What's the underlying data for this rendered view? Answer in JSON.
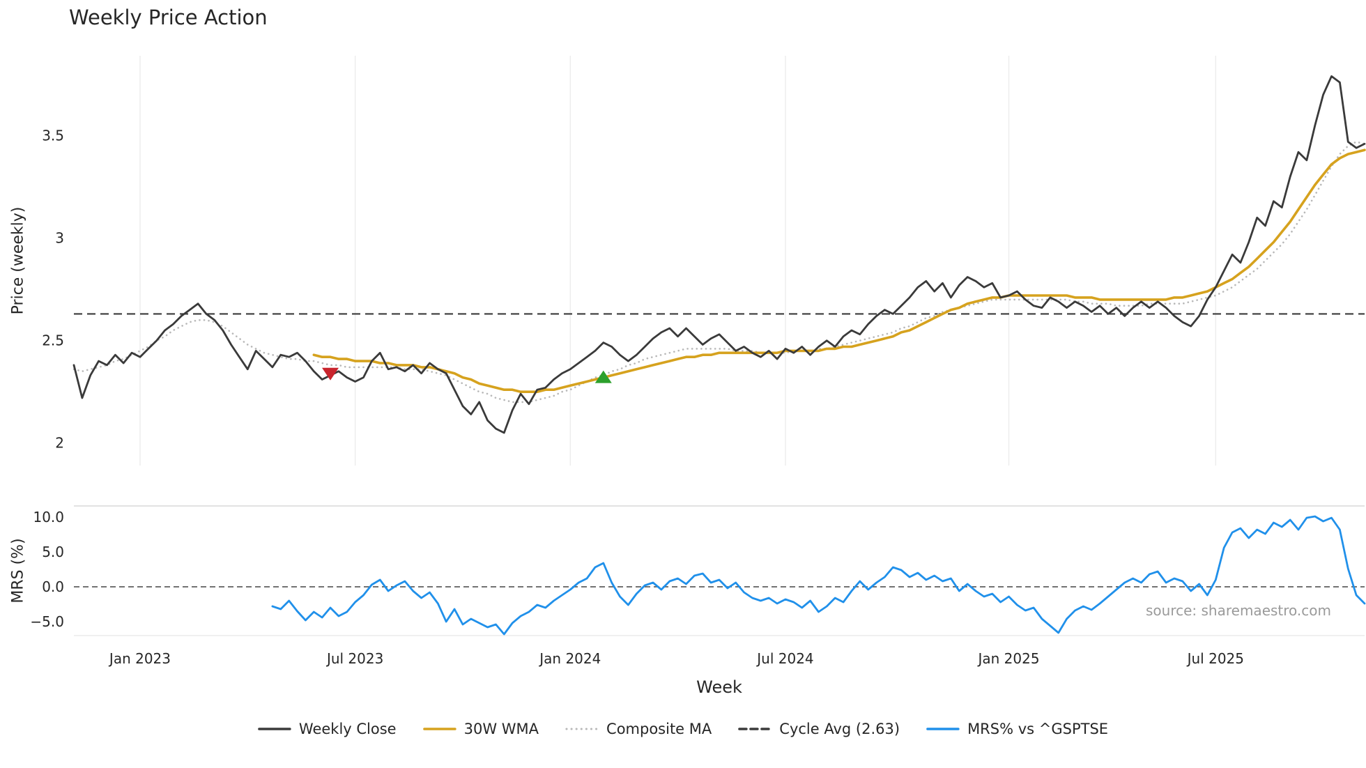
{
  "annotations": {
    "source": "source: sharemaestro.com"
  },
  "colors": {
    "weekly_close": "#3a3a3a",
    "wma30": "#d6a21e",
    "composite": "#b8b8b8",
    "cycle_avg": "#3a3a3a",
    "mrs": "#2090ea",
    "sell_marker": "#c9252d",
    "buy_marker": "#2ca02c",
    "grid": "#ececec",
    "panel_border": "#d8d8d8",
    "zero_line": "#444444",
    "text": "#262626",
    "muted": "#9a9a9a"
  },
  "legend": {
    "items": [
      {
        "label": "Weekly Close",
        "color": "#3a3a3a",
        "style": "solid"
      },
      {
        "label": "30W WMA",
        "color": "#d6a21e",
        "style": "solid"
      },
      {
        "label": "Composite MA",
        "color": "#b8b8b8",
        "style": "dotted"
      },
      {
        "label": "Cycle Avg (2.63)",
        "color": "#3a3a3a",
        "style": "dashed"
      },
      {
        "label": "MRS% vs ^GSPTSE",
        "color": "#2090ea",
        "style": "solid"
      }
    ]
  },
  "chart_data": [
    {
      "type": "line",
      "panel": "price",
      "title": "Weekly Price Action",
      "ylabel": "Price (weekly)",
      "ylim": [
        1.89,
        3.89
      ],
      "yticks": [
        {
          "value": 3.5,
          "label": "3.5"
        },
        {
          "value": 3.0,
          "label": "3"
        },
        {
          "value": 2.5,
          "label": "2.5"
        },
        {
          "value": 2.0,
          "label": "2"
        }
      ],
      "x_start": "2022-11-07",
      "x_freq": "weekly",
      "n_points": 157,
      "series": [
        {
          "name": "Weekly Close",
          "color": "#3a3a3a",
          "style": "solid",
          "start_index": 0,
          "values": [
            2.38,
            2.22,
            2.33,
            2.4,
            2.38,
            2.43,
            2.39,
            2.44,
            2.42,
            2.46,
            2.5,
            2.55,
            2.58,
            2.62,
            2.65,
            2.68,
            2.63,
            2.6,
            2.55,
            2.48,
            2.42,
            2.36,
            2.45,
            2.41,
            2.37,
            2.43,
            2.42,
            2.44,
            2.4,
            2.35,
            2.31,
            2.33,
            2.35,
            2.32,
            2.3,
            2.32,
            2.4,
            2.44,
            2.36,
            2.37,
            2.35,
            2.38,
            2.34,
            2.39,
            2.36,
            2.34,
            2.26,
            2.18,
            2.14,
            2.2,
            2.11,
            2.07,
            2.05,
            2.16,
            2.24,
            2.19,
            2.26,
            2.27,
            2.31,
            2.34,
            2.36,
            2.39,
            2.42,
            2.45,
            2.49,
            2.47,
            2.43,
            2.4,
            2.43,
            2.47,
            2.51,
            2.54,
            2.56,
            2.52,
            2.56,
            2.52,
            2.48,
            2.51,
            2.53,
            2.49,
            2.45,
            2.47,
            2.44,
            2.42,
            2.45,
            2.41,
            2.46,
            2.44,
            2.47,
            2.43,
            2.47,
            2.5,
            2.47,
            2.52,
            2.55,
            2.53,
            2.58,
            2.62,
            2.65,
            2.63,
            2.67,
            2.71,
            2.76,
            2.79,
            2.74,
            2.78,
            2.71,
            2.77,
            2.81,
            2.79,
            2.76,
            2.78,
            2.71,
            2.72,
            2.74,
            2.7,
            2.67,
            2.66,
            2.71,
            2.69,
            2.66,
            2.69,
            2.67,
            2.64,
            2.67,
            2.63,
            2.66,
            2.62,
            2.66,
            2.69,
            2.66,
            2.69,
            2.66,
            2.62,
            2.59,
            2.57,
            2.62,
            2.7,
            2.76,
            2.84,
            2.92,
            2.88,
            2.98,
            3.1,
            3.06,
            3.18,
            3.15,
            3.3,
            3.42,
            3.38,
            3.55,
            3.7,
            3.79,
            3.76,
            3.47,
            3.44,
            3.46
          ]
        },
        {
          "name": "30W WMA",
          "color": "#d6a21e",
          "style": "solid",
          "start_index": 29,
          "values": [
            2.43,
            2.42,
            2.42,
            2.41,
            2.41,
            2.4,
            2.4,
            2.4,
            2.39,
            2.39,
            2.38,
            2.38,
            2.38,
            2.37,
            2.37,
            2.36,
            2.35,
            2.34,
            2.32,
            2.31,
            2.29,
            2.28,
            2.27,
            2.26,
            2.26,
            2.25,
            2.25,
            2.25,
            2.26,
            2.26,
            2.27,
            2.28,
            2.29,
            2.3,
            2.31,
            2.32,
            2.33,
            2.34,
            2.35,
            2.36,
            2.37,
            2.38,
            2.39,
            2.4,
            2.41,
            2.42,
            2.42,
            2.43,
            2.43,
            2.44,
            2.44,
            2.44,
            2.44,
            2.44,
            2.44,
            2.44,
            2.44,
            2.45,
            2.45,
            2.45,
            2.45,
            2.45,
            2.46,
            2.46,
            2.47,
            2.47,
            2.48,
            2.49,
            2.5,
            2.51,
            2.52,
            2.54,
            2.55,
            2.57,
            2.59,
            2.61,
            2.63,
            2.65,
            2.66,
            2.68,
            2.69,
            2.7,
            2.71,
            2.71,
            2.72,
            2.72,
            2.72,
            2.72,
            2.72,
            2.72,
            2.72,
            2.72,
            2.71,
            2.71,
            2.71,
            2.7,
            2.7,
            2.7,
            2.7,
            2.7,
            2.7,
            2.7,
            2.7,
            2.7,
            2.71,
            2.71,
            2.72,
            2.73,
            2.74,
            2.76,
            2.78,
            2.8,
            2.83,
            2.86,
            2.9,
            2.94,
            2.98,
            3.03,
            3.08,
            3.14,
            3.2,
            3.26,
            3.31,
            3.36,
            3.39,
            3.41,
            3.42,
            3.43
          ]
        },
        {
          "name": "Composite MA",
          "color": "#b8b8b8",
          "style": "dotted",
          "start_index": 0,
          "values": [
            2.36,
            2.35,
            2.36,
            2.37,
            2.38,
            2.4,
            2.41,
            2.43,
            2.45,
            2.47,
            2.5,
            2.52,
            2.55,
            2.57,
            2.59,
            2.6,
            2.6,
            2.59,
            2.57,
            2.54,
            2.51,
            2.48,
            2.46,
            2.44,
            2.43,
            2.42,
            2.41,
            2.41,
            2.4,
            2.4,
            2.39,
            2.38,
            2.38,
            2.37,
            2.37,
            2.37,
            2.37,
            2.37,
            2.37,
            2.37,
            2.36,
            2.36,
            2.36,
            2.35,
            2.34,
            2.33,
            2.31,
            2.29,
            2.27,
            2.25,
            2.24,
            2.22,
            2.21,
            2.2,
            2.2,
            2.2,
            2.21,
            2.22,
            2.23,
            2.25,
            2.26,
            2.28,
            2.3,
            2.32,
            2.33,
            2.35,
            2.36,
            2.38,
            2.39,
            2.41,
            2.42,
            2.43,
            2.44,
            2.45,
            2.46,
            2.46,
            2.46,
            2.46,
            2.46,
            2.46,
            2.45,
            2.45,
            2.45,
            2.44,
            2.44,
            2.44,
            2.44,
            2.45,
            2.45,
            2.45,
            2.46,
            2.46,
            2.47,
            2.48,
            2.49,
            2.5,
            2.51,
            2.52,
            2.53,
            2.54,
            2.56,
            2.57,
            2.59,
            2.61,
            2.62,
            2.64,
            2.65,
            2.66,
            2.67,
            2.68,
            2.69,
            2.7,
            2.7,
            2.7,
            2.7,
            2.7,
            2.7,
            2.7,
            2.7,
            2.7,
            2.7,
            2.69,
            2.69,
            2.68,
            2.68,
            2.68,
            2.67,
            2.67,
            2.67,
            2.67,
            2.68,
            2.68,
            2.68,
            2.68,
            2.68,
            2.69,
            2.7,
            2.71,
            2.72,
            2.74,
            2.76,
            2.79,
            2.82,
            2.85,
            2.89,
            2.93,
            2.97,
            3.02,
            3.08,
            3.14,
            3.21,
            3.28,
            3.35,
            3.41,
            3.45,
            3.47,
            3.46
          ]
        },
        {
          "name": "Cycle Avg (2.63)",
          "type": "hline",
          "color": "#3a3a3a",
          "style": "dashed",
          "value": 2.63
        }
      ],
      "markers": [
        {
          "kind": "sell",
          "shape": "triangle-down",
          "color": "#c9252d",
          "index": 31,
          "value": 2.34
        },
        {
          "kind": "buy",
          "shape": "triangle-up",
          "color": "#2ca02c",
          "index": 64,
          "value": 2.32
        }
      ]
    },
    {
      "type": "line",
      "panel": "mrs",
      "ylabel": "MRS (%)",
      "xlabel": "Week",
      "ylim": [
        -7.0,
        11.6
      ],
      "yticks": [
        {
          "value": 10,
          "label": "10.0"
        },
        {
          "value": 5,
          "label": "5.0"
        },
        {
          "value": 0,
          "label": "0.0"
        },
        {
          "value": -5,
          "label": "−5.0"
        }
      ],
      "x_ticks": [
        {
          "index": 8,
          "label": "Jan 2023"
        },
        {
          "index": 34,
          "label": "Jul 2023"
        },
        {
          "index": 60,
          "label": "Jan 2024"
        },
        {
          "index": 86,
          "label": "Jul 2024"
        },
        {
          "index": 113,
          "label": "Jan 2025"
        },
        {
          "index": 138,
          "label": "Jul 2025"
        }
      ],
      "zero_line": {
        "value": 0,
        "style": "dashed",
        "color": "#444444"
      },
      "series": [
        {
          "name": "MRS% vs ^GSPTSE",
          "color": "#2090ea",
          "style": "solid",
          "start_index": 24,
          "values": [
            -2.8,
            -3.2,
            -2.0,
            -3.5,
            -4.8,
            -3.6,
            -4.4,
            -3.0,
            -4.2,
            -3.6,
            -2.2,
            -1.2,
            0.3,
            1.0,
            -0.6,
            0.2,
            0.8,
            -0.6,
            -1.6,
            -0.8,
            -2.4,
            -5.0,
            -3.2,
            -5.4,
            -4.6,
            -5.2,
            -5.8,
            -5.4,
            -6.8,
            -5.2,
            -4.2,
            -3.6,
            -2.6,
            -3.0,
            -2.0,
            -1.2,
            -0.4,
            0.6,
            1.2,
            2.8,
            3.4,
            0.6,
            -1.4,
            -2.6,
            -1.0,
            0.2,
            0.6,
            -0.4,
            0.8,
            1.2,
            0.4,
            1.6,
            1.9,
            0.6,
            1.0,
            -0.2,
            0.6,
            -0.8,
            -1.6,
            -2.0,
            -1.6,
            -2.4,
            -1.8,
            -2.2,
            -3.0,
            -2.0,
            -3.6,
            -2.8,
            -1.6,
            -2.2,
            -0.6,
            0.8,
            -0.4,
            0.6,
            1.4,
            2.8,
            2.4,
            1.4,
            2.0,
            1.0,
            1.6,
            0.8,
            1.2,
            -0.6,
            0.4,
            -0.6,
            -1.4,
            -1.0,
            -2.2,
            -1.4,
            -2.6,
            -3.4,
            -3.0,
            -4.6,
            -5.6,
            -6.6,
            -4.6,
            -3.4,
            -2.8,
            -3.3,
            -2.4,
            -1.4,
            -0.4,
            0.6,
            1.2,
            0.6,
            1.8,
            2.2,
            0.6,
            1.2,
            0.8,
            -0.6,
            0.4,
            -1.2,
            1.0,
            5.6,
            7.8,
            8.4,
            7.0,
            8.2,
            7.6,
            9.2,
            8.6,
            9.6,
            8.2,
            9.9,
            10.1,
            9.4,
            9.9,
            8.2,
            2.6,
            -1.2,
            -2.4
          ]
        }
      ]
    }
  ]
}
